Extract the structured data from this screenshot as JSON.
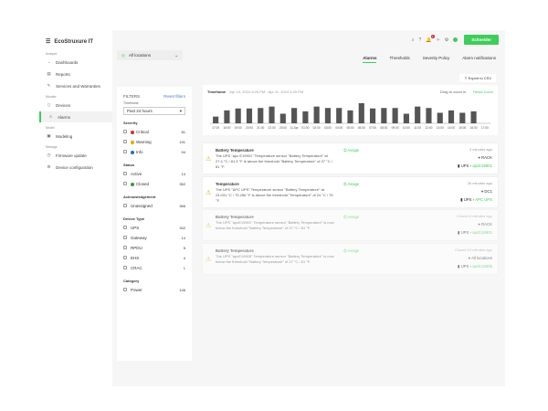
{
  "brand": {
    "name": "EcoStruxure IT"
  },
  "sidebar": {
    "sections": [
      {
        "label": "Analyze",
        "items": [
          {
            "label": "Dashboards",
            "icon": "dashboard-icon"
          },
          {
            "label": "Reports",
            "icon": "report-icon"
          },
          {
            "label": "Services and Warranties",
            "icon": "services-icon"
          }
        ]
      },
      {
        "label": "Monitor",
        "items": [
          {
            "label": "Devices",
            "icon": "device-icon"
          },
          {
            "label": "Alarms",
            "icon": "alarm-icon",
            "active": true
          }
        ]
      },
      {
        "label": "Model",
        "items": [
          {
            "label": "Modeling",
            "icon": "modeling-icon"
          }
        ]
      },
      {
        "label": "Manage",
        "items": [
          {
            "label": "Firmware update",
            "icon": "firmware-icon"
          },
          {
            "label": "Device configuration",
            "icon": "config-icon"
          }
        ]
      }
    ]
  },
  "location": {
    "value": "All locations"
  },
  "header": {
    "logo": "Schneider",
    "notification_count": "1"
  },
  "tabs": [
    "Alarms",
    "Thresholds",
    "Severity Policy",
    "Alarm notifications"
  ],
  "export_label": "Export to CSV",
  "filters": {
    "title": "FILTERS",
    "reset": "Reset filters",
    "timeframe_label": "Timeframe",
    "timeframe": "Past 24 hours",
    "groups": [
      {
        "title": "Severity",
        "items": [
          {
            "label": "Critical",
            "count": "81",
            "color": "#d32f2f"
          },
          {
            "label": "Warning",
            "count": "191",
            "color": "#e9a800"
          },
          {
            "label": "Info",
            "count": "94",
            "color": "#1f6fc5"
          }
        ]
      },
      {
        "title": "Status",
        "items": [
          {
            "label": "Active",
            "count": "14"
          },
          {
            "label": "Closed",
            "count": "352",
            "color": "#3a9a3a"
          }
        ]
      },
      {
        "title": "Acknowledgement",
        "items": [
          {
            "label": "Unassigned",
            "count": "366"
          }
        ]
      },
      {
        "title": "Device Type",
        "items": [
          {
            "label": "UPS",
            "count": "342"
          },
          {
            "label": "Gateway",
            "count": "14"
          },
          {
            "label": "RPDU",
            "count": "5"
          },
          {
            "label": "EHS",
            "count": "4"
          },
          {
            "label": "CRAC",
            "count": "1"
          }
        ]
      },
      {
        "title": "Category",
        "items": [
          {
            "label": "Power",
            "count": "146"
          }
        ]
      }
    ]
  },
  "chart": {
    "timeframe_label": "Timeframe",
    "range": "Apr 10, 2024 5:25 PM  -  Apr 11, 2024 5:25 PM",
    "drag": "Drag to zoom in",
    "reset": "Reset Zoom"
  },
  "chart_data": {
    "type": "bar",
    "categories": [
      "17:00",
      "18:00",
      "19:00",
      "20:00",
      "21:00",
      "22:00",
      "23:00",
      "11 Apr",
      "01:00",
      "02:00",
      "03:00",
      "04:00",
      "05:00",
      "06:00",
      "07:00",
      "08:00",
      "09:00",
      "10:00",
      "11:00",
      "12:00",
      "13:00",
      "14:00",
      "15:00",
      "16:00",
      "17:00"
    ],
    "values": [
      14,
      27,
      31,
      31,
      32,
      35,
      20,
      32,
      25,
      35,
      32,
      32,
      27,
      42,
      31,
      32,
      32,
      20,
      35,
      32,
      22,
      27,
      22,
      25,
      0
    ],
    "grid": false,
    "color": "#555555"
  },
  "alarms": [
    {
      "title": "Battery Temperature",
      "desc": "The UPS \"apc E19901\" Temperature sensor \"Battery Temperature\" at 27.4 °C / 81.3 °F is above the threshold \"Battery Temperature\" of 27 °C / 81 °F.",
      "assign": "Assign",
      "time": "3 minutes ago",
      "location": "RACK",
      "device_type": "UPS",
      "device": "apcE19901",
      "closed": false
    },
    {
      "title": "Temperature",
      "desc": "The UPS \"APC UPS\" Temperature sensor \"Battery Temperature\" at 24.031 °C / 75.256 °F is above the threshold \"Temperature\" of 24 °C / 75 °F.",
      "assign": "Assign",
      "time": "26 minutes ago",
      "location": "DC1",
      "device_type": "UPS",
      "device": "APC UPS",
      "closed": false
    },
    {
      "title": "Battery Temperature",
      "desc": "The UPS \"apcE19901\" Temperature sensor \"Battery Temperature\" is now below the threshold \"Battery Temperature\" of 27 °C / 81 °F.",
      "assign": "Assign",
      "time": "Closed 8 minutes ago",
      "location": "RACK",
      "device_type": "UPS",
      "device": "apcE19901",
      "closed": true
    },
    {
      "title": "Battery Temperature",
      "desc": "The UPS \"apcE19905\" Temperature sensor \"Battery Temperature\" is now below the threshold \"Battery Temperature\" of 27 °C / 81 °F.",
      "assign": "Assign",
      "time": "Closed 10 minutes ago",
      "location": "All locations",
      "device_type": "UPS",
      "device": "apcE19905",
      "closed": true
    }
  ]
}
